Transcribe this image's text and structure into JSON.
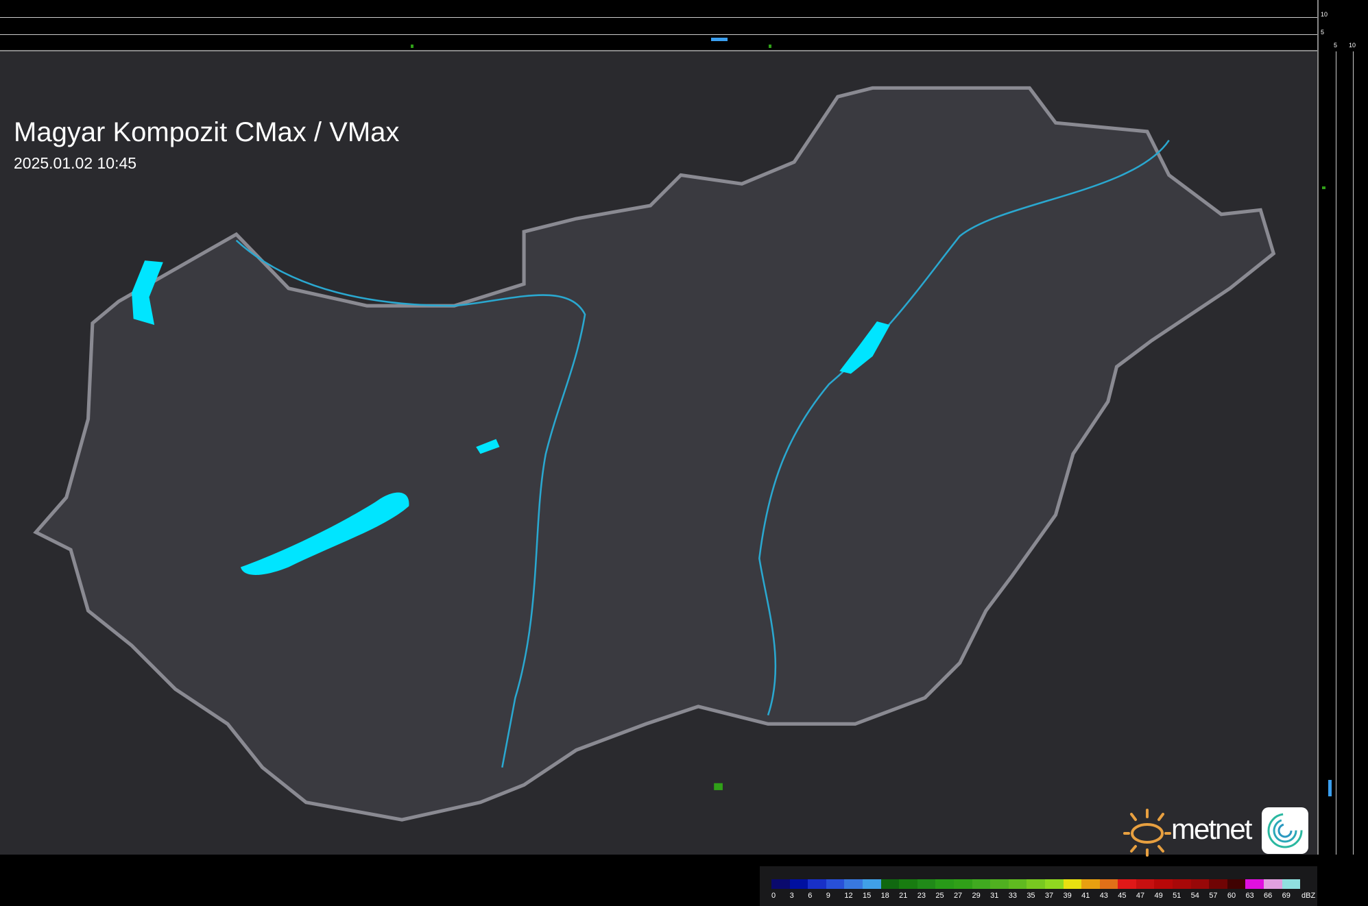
{
  "header": {
    "title": "Magyar Kompozit CMax / VMax",
    "timestamp": "2025.01.02 10:45"
  },
  "side_profile": {
    "top_ticks": [
      "10",
      "5"
    ],
    "right_ticks": [
      "5",
      "10"
    ]
  },
  "legend": {
    "unit": "dBZ",
    "labels": [
      "0",
      "3",
      "6",
      "9",
      "12",
      "15",
      "18",
      "21",
      "23",
      "25",
      "27",
      "29",
      "31",
      "33",
      "35",
      "37",
      "39",
      "41",
      "43",
      "45",
      "47",
      "49",
      "51",
      "54",
      "57",
      "60",
      "63",
      "66",
      "69"
    ],
    "colors": [
      "#0a0a6e",
      "#0010a0",
      "#1830c8",
      "#2850d8",
      "#3878e0",
      "#40a0e8",
      "#106810",
      "#187c10",
      "#208a18",
      "#289a18",
      "#30a018",
      "#40aa20",
      "#50b020",
      "#60ba20",
      "#78c820",
      "#90d820",
      "#e8e010",
      "#e8a010",
      "#e07018",
      "#e01818",
      "#c81010",
      "#b80808",
      "#a80808",
      "#980808",
      "#700404",
      "#400202",
      "#e010e0",
      "#e0a0e0",
      "#90e0e0"
    ]
  },
  "brand": {
    "name": "metnet",
    "sun_color": "#e8a040"
  },
  "map_colors": {
    "lakes": "#00e5ff",
    "rivers": "#2aa8d0",
    "border": "#8a8a92",
    "background": "#2a2a2e",
    "country": "#3a3a40"
  }
}
